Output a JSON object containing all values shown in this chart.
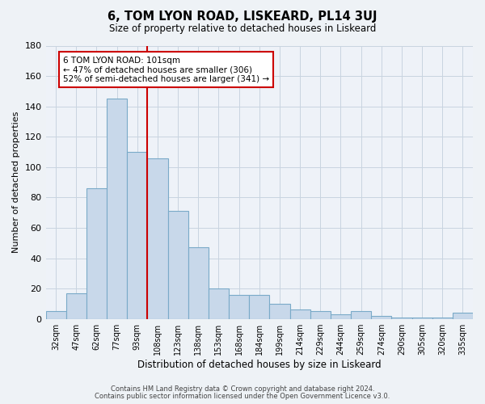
{
  "title": "6, TOM LYON ROAD, LISKEARD, PL14 3UJ",
  "subtitle": "Size of property relative to detached houses in Liskeard",
  "xlabel": "Distribution of detached houses by size in Liskeard",
  "ylabel": "Number of detached properties",
  "bar_labels": [
    "32sqm",
    "47sqm",
    "62sqm",
    "77sqm",
    "93sqm",
    "108sqm",
    "123sqm",
    "138sqm",
    "153sqm",
    "168sqm",
    "184sqm",
    "199sqm",
    "214sqm",
    "229sqm",
    "244sqm",
    "259sqm",
    "274sqm",
    "290sqm",
    "305sqm",
    "320sqm",
    "335sqm"
  ],
  "bar_values": [
    5,
    17,
    86,
    145,
    110,
    106,
    71,
    47,
    20,
    16,
    16,
    10,
    6,
    5,
    3,
    5,
    2,
    1,
    1,
    1,
    4
  ],
  "bar_color": "#c8d8ea",
  "bar_edge_color": "#7aaac8",
  "vline_x": 4.5,
  "vline_color": "#cc0000",
  "annotation_line1": "6 TOM LYON ROAD: 101sqm",
  "annotation_line2": "← 47% of detached houses are smaller (306)",
  "annotation_line3": "52% of semi-detached houses are larger (341) →",
  "annotation_box_color": "#ffffff",
  "annotation_box_edge": "#cc0000",
  "ylim": [
    0,
    180
  ],
  "yticks": [
    0,
    20,
    40,
    60,
    80,
    100,
    120,
    140,
    160,
    180
  ],
  "footer_line1": "Contains HM Land Registry data © Crown copyright and database right 2024.",
  "footer_line2": "Contains public sector information licensed under the Open Government Licence v3.0.",
  "bg_color": "#eef2f6",
  "plot_bg_color": "#eef2f8",
  "grid_color": "#c8d4e0"
}
